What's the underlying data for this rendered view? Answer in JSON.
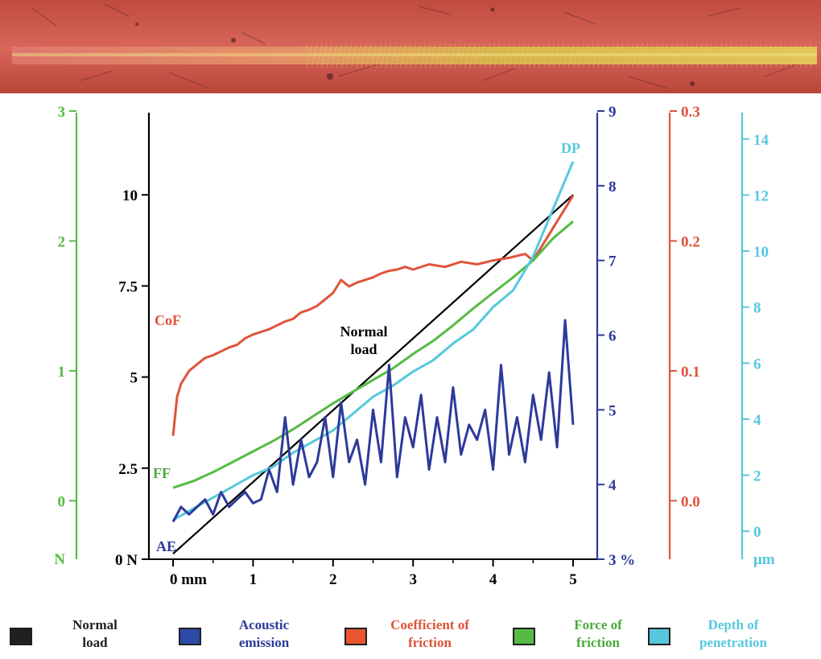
{
  "chart_data": {
    "type": "line",
    "xlim": [
      0,
      5
    ],
    "x_ticks": [
      {
        "value": 0,
        "label": "0 mm"
      },
      {
        "value": 1,
        "label": "1"
      },
      {
        "value": 2,
        "label": "2"
      },
      {
        "value": 3,
        "label": "3"
      },
      {
        "value": 4,
        "label": "4"
      },
      {
        "value": 5,
        "label": "5"
      }
    ],
    "axes": [
      {
        "key": "force",
        "color": "#55bb44",
        "range": [
          -0.45,
          3.0
        ],
        "unit_label": "N",
        "ticks": [
          {
            "value": 0,
            "label": "0"
          },
          {
            "value": 1,
            "label": "1"
          },
          {
            "value": 2,
            "label": "2"
          },
          {
            "value": 3,
            "label": "3"
          }
        ]
      },
      {
        "key": "load",
        "color": "#000000",
        "range": [
          0,
          12.3
        ],
        "ticks": [
          {
            "value": 0,
            "label": "0 N"
          },
          {
            "value": 2.5,
            "label": "2.5"
          },
          {
            "value": 5,
            "label": "5"
          },
          {
            "value": 7.5,
            "label": "7.5"
          },
          {
            "value": 10,
            "label": "10"
          }
        ]
      },
      {
        "key": "ae",
        "color": "#2d3a9a",
        "range": [
          3,
          9
        ],
        "ticks": [
          {
            "value": 3,
            "label": "3 %"
          },
          {
            "value": 4,
            "label": "4"
          },
          {
            "value": 5,
            "label": "5"
          },
          {
            "value": 6,
            "label": "6"
          },
          {
            "value": 7,
            "label": "7"
          },
          {
            "value": 8,
            "label": "8"
          },
          {
            "value": 9,
            "label": "9"
          }
        ]
      },
      {
        "key": "cof",
        "color": "#e0533a",
        "range": [
          -0.045,
          0.3
        ],
        "ticks": [
          {
            "value": 0,
            "label": "0.0"
          },
          {
            "value": 0.1,
            "label": "0.1"
          },
          {
            "value": 0.2,
            "label": "0.2"
          },
          {
            "value": 0.3,
            "label": "0.3"
          }
        ]
      },
      {
        "key": "dp",
        "color": "#55c8dd",
        "range": [
          -1,
          15
        ],
        "unit_label": "μm",
        "ticks": [
          {
            "value": 0,
            "label": "0"
          },
          {
            "value": 2,
            "label": "2"
          },
          {
            "value": 4,
            "label": "4"
          },
          {
            "value": 6,
            "label": "6"
          },
          {
            "value": 8,
            "label": "8"
          },
          {
            "value": 10,
            "label": "10"
          },
          {
            "value": 12,
            "label": "12"
          },
          {
            "value": 14,
            "label": "14"
          }
        ]
      }
    ],
    "series": [
      {
        "key": "load",
        "name": "Normal load",
        "axis": "load",
        "color": "#000000",
        "x": [
          0,
          5
        ],
        "y": [
          0.15,
          10
        ]
      },
      {
        "key": "cof",
        "name": "CoF",
        "axis": "cof",
        "color": "#e0533a",
        "x": [
          0,
          0.05,
          0.1,
          0.2,
          0.3,
          0.4,
          0.5,
          0.6,
          0.7,
          0.8,
          0.9,
          1.0,
          1.1,
          1.2,
          1.3,
          1.4,
          1.5,
          1.6,
          1.7,
          1.8,
          1.9,
          2.0,
          2.1,
          2.2,
          2.3,
          2.4,
          2.5,
          2.6,
          2.7,
          2.8,
          2.9,
          3.0,
          3.2,
          3.4,
          3.6,
          3.8,
          4.0,
          4.2,
          4.4,
          4.5,
          4.6,
          4.7,
          4.8,
          4.9,
          5.0
        ],
        "y": [
          0.05,
          0.08,
          0.09,
          0.1,
          0.105,
          0.11,
          0.112,
          0.115,
          0.118,
          0.12,
          0.125,
          0.128,
          0.13,
          0.132,
          0.135,
          0.138,
          0.14,
          0.145,
          0.147,
          0.15,
          0.155,
          0.16,
          0.17,
          0.165,
          0.168,
          0.17,
          0.172,
          0.175,
          0.177,
          0.178,
          0.18,
          0.178,
          0.182,
          0.18,
          0.184,
          0.182,
          0.185,
          0.187,
          0.19,
          0.185,
          0.195,
          0.205,
          0.215,
          0.225,
          0.235
        ]
      },
      {
        "key": "ff",
        "name": "FF",
        "axis": "force",
        "color": "#55bb44",
        "x": [
          0,
          0.25,
          0.5,
          0.75,
          1.0,
          1.25,
          1.5,
          1.75,
          2.0,
          2.25,
          2.5,
          2.75,
          3.0,
          3.25,
          3.5,
          3.75,
          4.0,
          4.25,
          4.5,
          4.75,
          5.0
        ],
        "y": [
          0.1,
          0.15,
          0.22,
          0.3,
          0.38,
          0.46,
          0.55,
          0.65,
          0.75,
          0.84,
          0.93,
          1.02,
          1.13,
          1.23,
          1.35,
          1.48,
          1.6,
          1.72,
          1.85,
          2.02,
          2.15
        ]
      },
      {
        "key": "dp",
        "name": "DP",
        "axis": "dp",
        "color": "#55c8dd",
        "x": [
          0,
          0.25,
          0.5,
          0.75,
          1.0,
          1.25,
          1.5,
          1.75,
          2.0,
          2.25,
          2.5,
          2.75,
          3.0,
          3.25,
          3.5,
          3.75,
          4.0,
          4.25,
          4.5,
          4.75,
          5.0
        ],
        "y": [
          0.4,
          0.8,
          1.2,
          1.6,
          2.0,
          2.3,
          2.8,
          3.2,
          3.6,
          4.2,
          4.8,
          5.2,
          5.7,
          6.1,
          6.7,
          7.2,
          8.0,
          8.6,
          9.8,
          11.5,
          13.2
        ]
      },
      {
        "key": "ae",
        "name": "AE",
        "axis": "ae",
        "color": "#2d3a9a",
        "x": [
          0,
          0.1,
          0.2,
          0.3,
          0.4,
          0.5,
          0.6,
          0.7,
          0.8,
          0.9,
          1.0,
          1.1,
          1.2,
          1.3,
          1.4,
          1.5,
          1.6,
          1.7,
          1.8,
          1.9,
          2.0,
          2.1,
          2.2,
          2.3,
          2.4,
          2.5,
          2.6,
          2.7,
          2.8,
          2.9,
          3.0,
          3.1,
          3.2,
          3.3,
          3.4,
          3.5,
          3.6,
          3.7,
          3.8,
          3.9,
          4.0,
          4.1,
          4.2,
          4.3,
          4.4,
          4.5,
          4.6,
          4.7,
          4.8,
          4.9,
          5.0
        ],
        "y": [
          3.5,
          3.7,
          3.6,
          3.7,
          3.8,
          3.6,
          3.9,
          3.7,
          3.8,
          3.9,
          3.75,
          3.8,
          4.2,
          3.9,
          4.9,
          4.0,
          4.6,
          4.1,
          4.3,
          4.9,
          4.1,
          5.1,
          4.3,
          4.6,
          4.0,
          5.0,
          4.3,
          5.6,
          4.1,
          4.9,
          4.5,
          5.2,
          4.2,
          4.9,
          4.3,
          5.3,
          4.4,
          4.8,
          4.6,
          5.0,
          4.2,
          5.6,
          4.4,
          4.9,
          4.3,
          5.2,
          4.6,
          5.5,
          4.5,
          6.2,
          4.8
        ]
      }
    ],
    "annotations": {
      "cof": "CoF",
      "ff": "FF",
      "ae": "AE",
      "dp": "DP",
      "load_line1": "Normal",
      "load_line2": "load"
    }
  },
  "legend": [
    {
      "key": "load",
      "line1": "Normal",
      "line2": "load",
      "color": "#202020",
      "text_color": "#202020"
    },
    {
      "key": "ae",
      "line1": "Acoustic",
      "line2": "emission",
      "color": "#2d4aa8",
      "text_color": "#2d3a9a"
    },
    {
      "key": "cof",
      "line1": "Coefficient of",
      "line2": "friction",
      "color": "#e8552f",
      "text_color": "#e0533a"
    },
    {
      "key": "ff",
      "line1": "Force of",
      "line2": "friction",
      "color": "#55bb44",
      "text_color": "#4aaa3a"
    },
    {
      "key": "dp",
      "line1": "Depth of",
      "line2": "penetration",
      "color": "#55c8dd",
      "text_color": "#55c8dd"
    }
  ]
}
